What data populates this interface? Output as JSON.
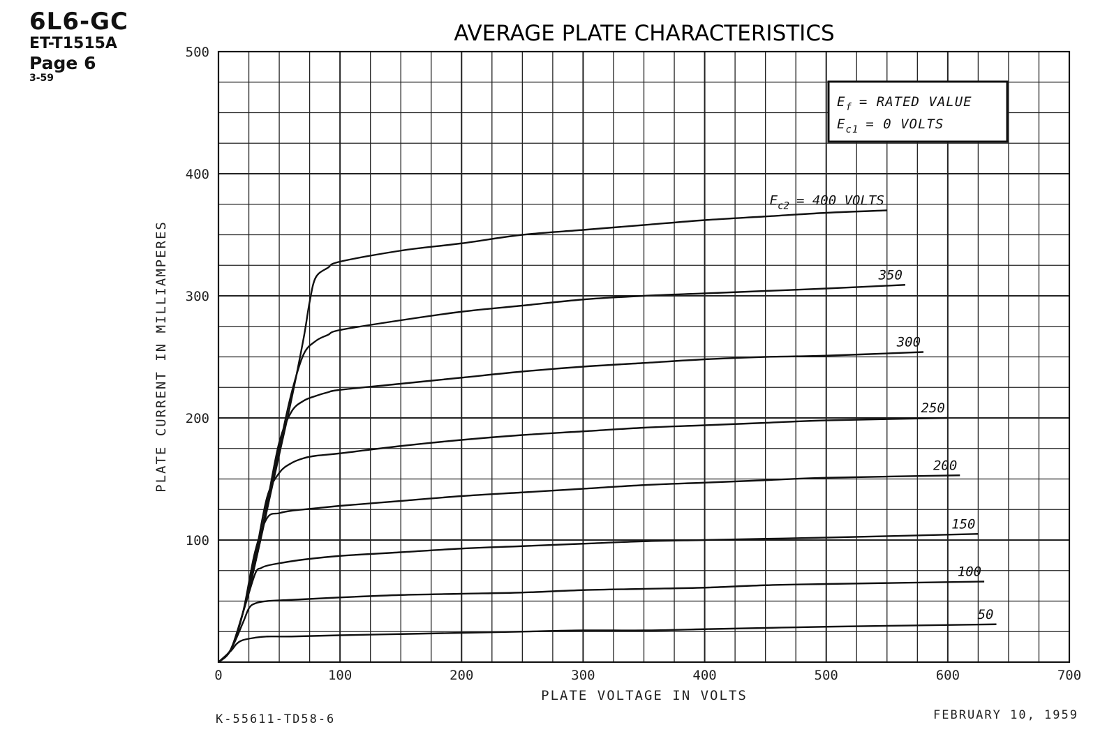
{
  "header": {
    "tube_type": "6L6-GC",
    "doc_number": "ET-T1515A",
    "page": "Page 6",
    "revision": "3-59"
  },
  "footer": {
    "drawing_number": "K-55611-TD58-6",
    "date": "FEBRUARY 10, 1959"
  },
  "legend": {
    "line1": {
      "symbol": "E",
      "subscript": "f",
      "text": "= RATED VALUE"
    },
    "line2": {
      "symbol": "E",
      "subscript": "c1",
      "text": "= 0 VOLTS"
    }
  },
  "chart_data": {
    "type": "line",
    "title": "AVERAGE PLATE CHARACTERISTICS",
    "xlabel": "PLATE VOLTAGE IN VOLTS",
    "ylabel": "PLATE CURRENT IN MILLIAMPERES",
    "xlim": [
      0,
      700
    ],
    "ylim": [
      0,
      500
    ],
    "x_ticks": [
      0,
      100,
      200,
      300,
      400,
      500,
      600,
      700
    ],
    "y_ticks": [
      100,
      200,
      300,
      400,
      500
    ],
    "grid": true,
    "series_label_prefix": {
      "symbol": "E",
      "subscript": "c2",
      "text": "= 400 VOLTS"
    },
    "series": [
      {
        "name": "400",
        "points": [
          [
            0,
            0
          ],
          [
            10,
            10
          ],
          [
            20,
            40
          ],
          [
            30,
            80
          ],
          [
            40,
            125
          ],
          [
            50,
            170
          ],
          [
            60,
            215
          ],
          [
            70,
            265
          ],
          [
            75,
            295
          ],
          [
            80,
            315
          ],
          [
            90,
            323
          ],
          [
            100,
            328
          ],
          [
            150,
            337
          ],
          [
            200,
            343
          ],
          [
            250,
            350
          ],
          [
            300,
            354
          ],
          [
            350,
            358
          ],
          [
            400,
            362
          ],
          [
            450,
            365
          ],
          [
            500,
            368
          ],
          [
            550,
            370
          ]
        ]
      },
      {
        "name": "350",
        "points": [
          [
            0,
            0
          ],
          [
            10,
            10
          ],
          [
            20,
            40
          ],
          [
            30,
            80
          ],
          [
            40,
            125
          ],
          [
            50,
            175
          ],
          [
            60,
            220
          ],
          [
            70,
            252
          ],
          [
            80,
            263
          ],
          [
            90,
            268
          ],
          [
            100,
            272
          ],
          [
            150,
            280
          ],
          [
            200,
            287
          ],
          [
            250,
            292
          ],
          [
            300,
            297
          ],
          [
            350,
            300
          ],
          [
            400,
            302
          ],
          [
            450,
            304
          ],
          [
            500,
            306
          ],
          [
            565,
            309
          ]
        ]
      },
      {
        "name": "300",
        "points": [
          [
            0,
            0
          ],
          [
            10,
            10
          ],
          [
            20,
            40
          ],
          [
            30,
            80
          ],
          [
            40,
            130
          ],
          [
            50,
            180
          ],
          [
            60,
            205
          ],
          [
            70,
            214
          ],
          [
            80,
            218
          ],
          [
            90,
            221
          ],
          [
            100,
            223
          ],
          [
            150,
            228
          ],
          [
            200,
            233
          ],
          [
            250,
            238
          ],
          [
            300,
            242
          ],
          [
            350,
            245
          ],
          [
            400,
            248
          ],
          [
            450,
            250
          ],
          [
            500,
            251
          ],
          [
            580,
            254
          ]
        ]
      },
      {
        "name": "250",
        "points": [
          [
            0,
            0
          ],
          [
            10,
            10
          ],
          [
            20,
            40
          ],
          [
            30,
            85
          ],
          [
            40,
            135
          ],
          [
            50,
            155
          ],
          [
            60,
            163
          ],
          [
            70,
            167
          ],
          [
            80,
            169
          ],
          [
            100,
            171
          ],
          [
            150,
            177
          ],
          [
            200,
            182
          ],
          [
            250,
            186
          ],
          [
            300,
            189
          ],
          [
            350,
            192
          ],
          [
            400,
            194
          ],
          [
            450,
            196
          ],
          [
            500,
            198
          ],
          [
            600,
            200
          ]
        ]
      },
      {
        "name": "200",
        "points": [
          [
            0,
            0
          ],
          [
            10,
            10
          ],
          [
            20,
            40
          ],
          [
            30,
            90
          ],
          [
            40,
            118
          ],
          [
            50,
            122
          ],
          [
            60,
            124
          ],
          [
            80,
            126
          ],
          [
            100,
            128
          ],
          [
            150,
            132
          ],
          [
            200,
            136
          ],
          [
            250,
            139
          ],
          [
            300,
            142
          ],
          [
            350,
            145
          ],
          [
            400,
            147
          ],
          [
            450,
            149
          ],
          [
            500,
            151
          ],
          [
            610,
            153
          ]
        ]
      },
      {
        "name": "150",
        "points": [
          [
            0,
            0
          ],
          [
            10,
            10
          ],
          [
            20,
            40
          ],
          [
            30,
            72
          ],
          [
            35,
            77
          ],
          [
            40,
            79
          ],
          [
            50,
            81
          ],
          [
            70,
            84
          ],
          [
            100,
            87
          ],
          [
            150,
            90
          ],
          [
            200,
            93
          ],
          [
            250,
            95
          ],
          [
            300,
            97
          ],
          [
            350,
            99
          ],
          [
            400,
            100
          ],
          [
            450,
            101
          ],
          [
            500,
            102
          ],
          [
            625,
            105
          ]
        ]
      },
      {
        "name": "100",
        "points": [
          [
            0,
            0
          ],
          [
            10,
            10
          ],
          [
            20,
            32
          ],
          [
            25,
            44
          ],
          [
            30,
            48
          ],
          [
            40,
            50
          ],
          [
            60,
            51
          ],
          [
            100,
            53
          ],
          [
            150,
            55
          ],
          [
            200,
            56
          ],
          [
            250,
            57
          ],
          [
            300,
            59
          ],
          [
            350,
            60
          ],
          [
            400,
            61
          ],
          [
            450,
            63
          ],
          [
            500,
            64
          ],
          [
            630,
            66
          ]
        ]
      },
      {
        "name": "50",
        "points": [
          [
            0,
            0
          ],
          [
            10,
            9
          ],
          [
            15,
            15
          ],
          [
            20,
            18
          ],
          [
            30,
            20
          ],
          [
            40,
            21
          ],
          [
            60,
            21
          ],
          [
            100,
            22
          ],
          [
            150,
            23
          ],
          [
            200,
            24
          ],
          [
            250,
            25
          ],
          [
            300,
            26
          ],
          [
            350,
            26
          ],
          [
            400,
            27
          ],
          [
            450,
            28
          ],
          [
            500,
            29
          ],
          [
            640,
            31
          ]
        ]
      }
    ]
  }
}
